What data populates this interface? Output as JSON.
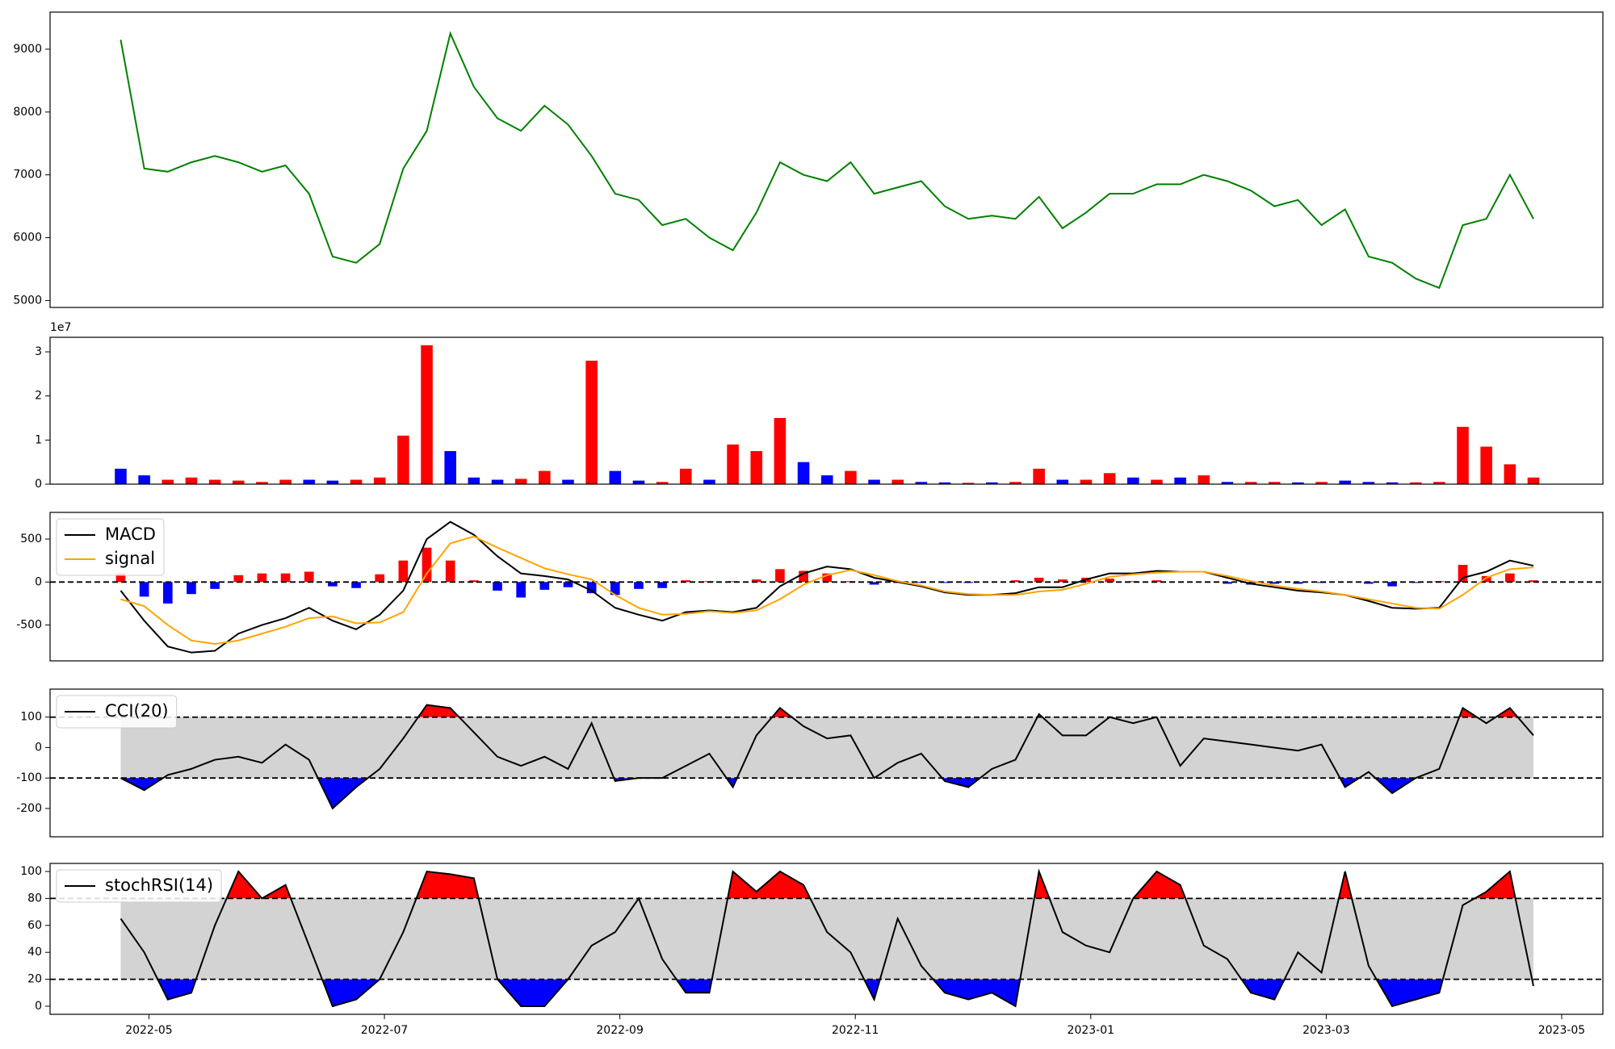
{
  "chart_data": [
    {
      "type": "line",
      "color": "green",
      "x": [
        4.76,
        4.96,
        5.16,
        5.36,
        5.56,
        5.76,
        5.96,
        6.16,
        6.36,
        6.56,
        6.76,
        6.96,
        7.16,
        7.36,
        7.56,
        7.76,
        7.96,
        8.16,
        8.36,
        8.56,
        8.76,
        8.96,
        9.16,
        9.36,
        9.56,
        9.76,
        9.96,
        10.16,
        10.36,
        10.56,
        10.76,
        10.96,
        11.16,
        11.36,
        11.56,
        11.76,
        11.96,
        12.16,
        12.36,
        12.56,
        12.76,
        12.96,
        13.16,
        13.36,
        13.56,
        13.76,
        13.96,
        14.16,
        14.36,
        14.56,
        14.76,
        14.96,
        15.16,
        15.36,
        15.56,
        15.76,
        15.96,
        16.16,
        16.36,
        16.56,
        16.76
      ],
      "values": [
        9150,
        7100,
        7050,
        7200,
        7300,
        7200,
        7050,
        7150,
        6700,
        5700,
        5600,
        5900,
        7100,
        7700,
        9250,
        8400,
        7900,
        7700,
        8100,
        7800,
        7300,
        6700,
        6600,
        6200,
        6300,
        6000,
        5800,
        6400,
        7200,
        7000,
        6900,
        7200,
        6700,
        6800,
        6900,
        6500,
        6300,
        6350,
        6300,
        6650,
        6150,
        6400,
        6700,
        6700,
        6850,
        6850,
        7000,
        6900,
        6750,
        6500,
        6600,
        6200,
        6450,
        5700,
        5600,
        5350,
        5200,
        6200,
        6300,
        7000,
        6300
      ],
      "xlim": [
        4.16,
        17.35
      ],
      "ylim": [
        4890,
        9590
      ],
      "yticks": [
        5000,
        6000,
        7000,
        8000,
        9000
      ]
    },
    {
      "type": "bar",
      "offset_label": "1e7",
      "x": [
        4.76,
        4.96,
        5.16,
        5.36,
        5.56,
        5.76,
        5.96,
        6.16,
        6.36,
        6.56,
        6.76,
        6.96,
        7.16,
        7.36,
        7.56,
        7.76,
        7.96,
        8.16,
        8.36,
        8.56,
        8.76,
        8.96,
        9.16,
        9.36,
        9.56,
        9.76,
        9.96,
        10.16,
        10.36,
        10.56,
        10.76,
        10.96,
        11.16,
        11.36,
        11.56,
        11.76,
        11.96,
        12.16,
        12.36,
        12.56,
        12.76,
        12.96,
        13.16,
        13.36,
        13.56,
        13.76,
        13.96,
        14.16,
        14.36,
        14.56,
        14.76,
        14.96,
        15.16,
        15.36,
        15.56,
        15.76,
        15.96,
        16.16,
        16.36,
        16.56,
        16.76
      ],
      "values": [
        0.35,
        0.2,
        0.1,
        0.15,
        0.1,
        0.08,
        0.05,
        0.1,
        0.1,
        0.08,
        0.1,
        0.15,
        1.1,
        3.15,
        0.75,
        0.15,
        0.1,
        0.12,
        0.3,
        0.1,
        2.8,
        0.3,
        0.08,
        0.05,
        0.35,
        0.1,
        0.9,
        0.75,
        1.5,
        0.5,
        0.2,
        0.3,
        0.1,
        0.1,
        0.05,
        0.04,
        0.03,
        0.04,
        0.05,
        0.35,
        0.1,
        0.1,
        0.25,
        0.15,
        0.1,
        0.15,
        0.2,
        0.05,
        0.05,
        0.05,
        0.04,
        0.05,
        0.08,
        0.05,
        0.04,
        0.04,
        0.05,
        1.3,
        0.85,
        0.45,
        0.15
      ],
      "colors": [
        "blue",
        "blue",
        "red",
        "red",
        "red",
        "red",
        "red",
        "red",
        "blue",
        "blue",
        "red",
        "red",
        "red",
        "red",
        "blue",
        "blue",
        "blue",
        "red",
        "red",
        "blue",
        "red",
        "blue",
        "blue",
        "red",
        "red",
        "blue",
        "red",
        "red",
        "red",
        "blue",
        "blue",
        "red",
        "blue",
        "red",
        "blue",
        "blue",
        "red",
        "blue",
        "red",
        "red",
        "blue",
        "red",
        "red",
        "blue",
        "red",
        "blue",
        "red",
        "blue",
        "red",
        "red",
        "blue",
        "red",
        "blue",
        "blue",
        "blue",
        "red",
        "red",
        "red",
        "red",
        "red",
        "red"
      ],
      "xlim": [
        4.16,
        17.35
      ],
      "ylim": [
        0,
        3.33
      ],
      "yticks": [
        0,
        1,
        2,
        3
      ]
    },
    {
      "type": "macd",
      "x": [
        4.76,
        4.96,
        5.16,
        5.36,
        5.56,
        5.76,
        5.96,
        6.16,
        6.36,
        6.56,
        6.76,
        6.96,
        7.16,
        7.36,
        7.56,
        7.76,
        7.96,
        8.16,
        8.36,
        8.56,
        8.76,
        8.96,
        9.16,
        9.36,
        9.56,
        9.76,
        9.96,
        10.16,
        10.36,
        10.56,
        10.76,
        10.96,
        11.16,
        11.36,
        11.56,
        11.76,
        11.96,
        12.16,
        12.36,
        12.56,
        12.76,
        12.96,
        13.16,
        13.36,
        13.56,
        13.76,
        13.96,
        14.16,
        14.36,
        14.56,
        14.76,
        14.96,
        15.16,
        15.36,
        15.56,
        15.76,
        15.96,
        16.16,
        16.36,
        16.56,
        16.76
      ],
      "series": [
        {
          "name": "MACD",
          "color": "black",
          "values": [
            -100,
            -450,
            -750,
            -820,
            -800,
            -600,
            -500,
            -420,
            -300,
            -450,
            -550,
            -380,
            -100,
            500,
            700,
            550,
            300,
            100,
            70,
            30,
            -100,
            -300,
            -380,
            -450,
            -350,
            -330,
            -350,
            -300,
            -50,
            100,
            180,
            150,
            50,
            0,
            -50,
            -120,
            -150,
            -150,
            -130,
            -60,
            -60,
            30,
            100,
            100,
            130,
            120,
            120,
            50,
            -20,
            -60,
            -100,
            -120,
            -150,
            -220,
            -300,
            -310,
            -300,
            50,
            120,
            250,
            190
          ]
        },
        {
          "name": "signal",
          "color": "orange",
          "values": [
            -200,
            -280,
            -500,
            -680,
            -720,
            -680,
            -600,
            -520,
            -420,
            -400,
            -480,
            -470,
            -350,
            100,
            450,
            530,
            400,
            280,
            160,
            90,
            30,
            -150,
            -300,
            -380,
            -370,
            -340,
            -360,
            -330,
            -200,
            -30,
            80,
            140,
            80,
            10,
            -40,
            -110,
            -140,
            -150,
            -150,
            -110,
            -90,
            -20,
            60,
            90,
            110,
            120,
            120,
            70,
            10,
            -40,
            -80,
            -110,
            -150,
            -200,
            -250,
            -300,
            -310,
            -150,
            50,
            150,
            170
          ]
        }
      ],
      "histogram": {
        "positive_color": "red",
        "negative_color": "blue",
        "values": [
          100,
          -170,
          -250,
          -140,
          -80,
          80,
          100,
          100,
          120,
          -50,
          -70,
          90,
          250,
          400,
          250,
          20,
          -100,
          -180,
          -90,
          -60,
          -130,
          -150,
          -80,
          -70,
          20,
          10,
          10,
          30,
          150,
          130,
          100,
          10,
          -30,
          -10,
          -10,
          -10,
          -10,
          0,
          20,
          50,
          30,
          50,
          40,
          10,
          20,
          0,
          0,
          -20,
          -30,
          -20,
          -20,
          -10,
          0,
          -20,
          -50,
          -10,
          10,
          200,
          70,
          100,
          20
        ]
      },
      "hline": 0,
      "xlim": [
        4.16,
        17.35
      ],
      "ylim": [
        -917,
        810
      ],
      "yticks": [
        -500,
        0,
        500
      ]
    },
    {
      "type": "band",
      "x": [
        4.76,
        4.96,
        5.16,
        5.36,
        5.56,
        5.76,
        5.96,
        6.16,
        6.36,
        6.56,
        6.76,
        6.96,
        7.16,
        7.36,
        7.56,
        7.76,
        7.96,
        8.16,
        8.36,
        8.56,
        8.76,
        8.96,
        9.16,
        9.36,
        9.56,
        9.76,
        9.96,
        10.16,
        10.36,
        10.56,
        10.76,
        10.96,
        11.16,
        11.36,
        11.56,
        11.76,
        11.96,
        12.16,
        12.36,
        12.56,
        12.76,
        12.96,
        13.16,
        13.36,
        13.56,
        13.76,
        13.96,
        14.16,
        14.36,
        14.56,
        14.76,
        14.96,
        15.16,
        15.36,
        15.56,
        15.76,
        15.96,
        16.16,
        16.36,
        16.56,
        16.76
      ],
      "series": [
        {
          "name": "CCI(20)",
          "color": "black",
          "values": [
            -100,
            -140,
            -90,
            -70,
            -40,
            -30,
            -50,
            10,
            -40,
            -200,
            -130,
            -70,
            30,
            140,
            130,
            50,
            -30,
            -60,
            -30,
            -70,
            80,
            -110,
            -100,
            -100,
            -60,
            -20,
            -130,
            40,
            130,
            70,
            30,
            40,
            -100,
            -50,
            -20,
            -110,
            -130,
            -70,
            -40,
            110,
            40,
            40,
            100,
            80,
            100,
            -60,
            30,
            20,
            10,
            0,
            -10,
            10,
            -130,
            -80,
            -150,
            -100,
            -70,
            130,
            80,
            130,
            40
          ]
        }
      ],
      "upper": 100,
      "lower": -100,
      "band_color": "lightgray",
      "upper_color": "red",
      "lower_color": "blue",
      "xlim": [
        4.16,
        17.35
      ],
      "ylim": [
        -293,
        192
      ],
      "yticks": [
        -200,
        -100,
        0,
        100
      ]
    },
    {
      "type": "band",
      "x": [
        4.76,
        4.96,
        5.16,
        5.36,
        5.56,
        5.76,
        5.96,
        6.16,
        6.36,
        6.56,
        6.76,
        6.96,
        7.16,
        7.36,
        7.56,
        7.76,
        7.96,
        8.16,
        8.36,
        8.56,
        8.76,
        8.96,
        9.16,
        9.36,
        9.56,
        9.76,
        9.96,
        10.16,
        10.36,
        10.56,
        10.76,
        10.96,
        11.16,
        11.36,
        11.56,
        11.76,
        11.96,
        12.16,
        12.36,
        12.56,
        12.76,
        12.96,
        13.16,
        13.36,
        13.56,
        13.76,
        13.96,
        14.16,
        14.36,
        14.56,
        14.76,
        14.96,
        15.16,
        15.36,
        15.56,
        15.76,
        15.96,
        16.16,
        16.36,
        16.56,
        16.76
      ],
      "series": [
        {
          "name": "stochRSI(14)",
          "color": "black",
          "values": [
            65,
            40,
            5,
            10,
            60,
            100,
            80,
            90,
            45,
            0,
            5,
            20,
            55,
            100,
            98,
            95,
            20,
            0,
            0,
            20,
            45,
            55,
            80,
            35,
            10,
            10,
            100,
            85,
            100,
            90,
            55,
            40,
            5,
            65,
            30,
            10,
            5,
            10,
            0,
            100,
            55,
            45,
            40,
            80,
            100,
            90,
            45,
            35,
            10,
            5,
            40,
            25,
            100,
            30,
            0,
            5,
            10,
            75,
            85,
            100,
            15
          ]
        }
      ],
      "upper": 80,
      "lower": 20,
      "band_color": "lightgray",
      "upper_color": "red",
      "lower_color": "blue",
      "xlim": [
        4.16,
        17.35
      ],
      "ylim": [
        -6,
        106
      ],
      "yticks": [
        0,
        20,
        40,
        60,
        80,
        100
      ],
      "xticks": [
        {
          "value": 5,
          "label": "2022-05"
        },
        {
          "value": 7,
          "label": "2022-07"
        },
        {
          "value": 9,
          "label": "2022-09"
        },
        {
          "value": 11,
          "label": "2022-11"
        },
        {
          "value": 13,
          "label": "2023-01"
        },
        {
          "value": 15,
          "label": "2023-03"
        },
        {
          "value": 17,
          "label": "2023-05"
        }
      ]
    }
  ]
}
